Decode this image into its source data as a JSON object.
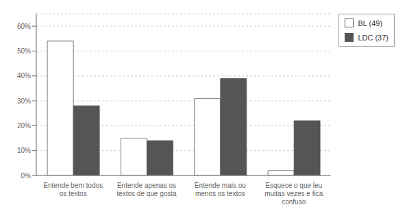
{
  "chart_data": {
    "type": "bar",
    "categories": [
      "Entende bem todos\nos textos",
      "Entende apenas os\ntextos de que gosta",
      "Entende mais ou\nmenos os textos",
      "Esquece o que leu\nmuitas vezes e fica\nconfuso"
    ],
    "series": [
      {
        "name": "BL (49)",
        "color": "#ffffff",
        "values": [
          0.54,
          0.15,
          0.31,
          0.02
        ]
      },
      {
        "name": "LDC (37)",
        "color": "#555555",
        "values": [
          0.28,
          0.14,
          0.39,
          0.22
        ]
      }
    ],
    "ylim": [
      0,
      0.65
    ],
    "yticks": [
      {
        "value": 0.0,
        "label": "0%"
      },
      {
        "value": 0.1,
        "label": "10%"
      },
      {
        "value": 0.2,
        "label": "20%"
      },
      {
        "value": 0.3,
        "label": "30%"
      },
      {
        "value": 0.4,
        "label": "40%"
      },
      {
        "value": 0.5,
        "label": "50%"
      },
      {
        "value": 0.6,
        "label": "60%"
      }
    ],
    "grid": true,
    "legend": "right"
  }
}
